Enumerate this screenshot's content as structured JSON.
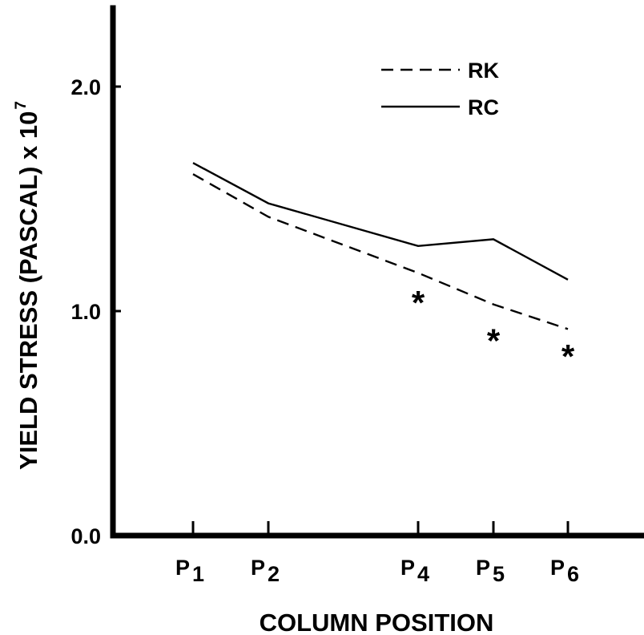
{
  "chart_data": {
    "type": "line",
    "xlabel": "COLUMN POSITION",
    "ylabel": "YIELD STRESS (PASCAL) x 10",
    "ylabel_exponent": "7",
    "ylim": [
      0,
      2.4
    ],
    "grid": false,
    "legend_position": "top-right",
    "y_ticks": [
      {
        "value": 0.0,
        "label": "0.0"
      },
      {
        "value": 1.0,
        "label": "1.0"
      },
      {
        "value": 2.0,
        "label": "2.0"
      }
    ],
    "categories": [
      {
        "key": "P1",
        "base": "P",
        "sub": "1",
        "pos": 1
      },
      {
        "key": "P2",
        "base": "P",
        "sub": "2",
        "pos": 2
      },
      {
        "key": "P4",
        "base": "P",
        "sub": "4",
        "pos": 4
      },
      {
        "key": "P5",
        "base": "P",
        "sub": "5",
        "pos": 5
      },
      {
        "key": "P6",
        "base": "P",
        "sub": "6",
        "pos": 6
      }
    ],
    "series": [
      {
        "name": "RK",
        "style": "dashed",
        "x": [
          "P1",
          "P2",
          "P4",
          "P5",
          "P6"
        ],
        "values": [
          1.61,
          1.42,
          1.17,
          1.03,
          0.92
        ]
      },
      {
        "name": "RC",
        "style": "solid",
        "x": [
          "P1",
          "P2",
          "P4",
          "P5",
          "P6"
        ],
        "values": [
          1.66,
          1.48,
          1.29,
          1.32,
          1.14
        ]
      }
    ],
    "markers": {
      "symbol": "*",
      "points": [
        {
          "x": "P4",
          "value": 1.05
        },
        {
          "x": "P5",
          "value": 0.88
        },
        {
          "x": "P6",
          "value": 0.81
        }
      ]
    },
    "colors": {
      "ink": "#000000",
      "background": "#ffffff"
    }
  }
}
